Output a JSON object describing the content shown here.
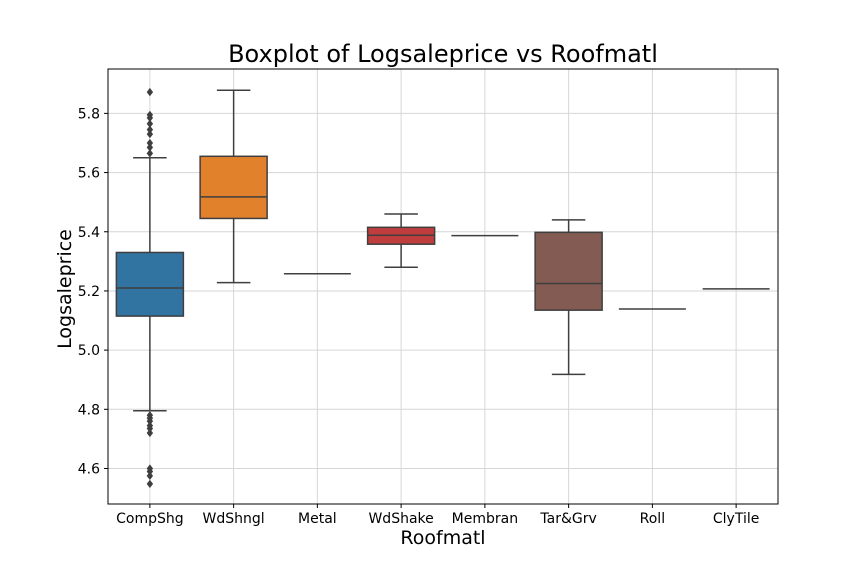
{
  "chart_data": {
    "type": "box",
    "title": "Boxplot of Logsaleprice vs Roofmatl",
    "xlabel": "Roofmatl",
    "ylabel": "Logsaleprice",
    "ylim": [
      4.48,
      5.95
    ],
    "yticks": [
      4.6,
      4.8,
      5.0,
      5.2,
      5.4,
      5.6,
      5.8
    ],
    "grid": true,
    "categories": [
      "CompShg",
      "WdShngl",
      "Metal",
      "WdShake",
      "Membran",
      "Tar&Grv",
      "Roll",
      "ClyTile"
    ],
    "series": [
      {
        "category": "CompShg",
        "color": "#3274a1",
        "min": 4.795,
        "q1": 5.115,
        "median": 5.21,
        "q3": 5.33,
        "max": 5.65,
        "outliers": [
          5.872,
          5.795,
          5.785,
          5.765,
          5.745,
          5.73,
          5.7,
          5.685,
          5.665,
          4.78,
          4.77,
          4.76,
          4.745,
          4.735,
          4.72,
          4.6,
          4.59,
          4.575,
          4.548
        ]
      },
      {
        "category": "WdShngl",
        "color": "#e1812c",
        "min": 5.228,
        "q1": 5.445,
        "median": 5.518,
        "q3": 5.655,
        "max": 5.878,
        "outliers": []
      },
      {
        "category": "Metal",
        "color": "#3a923a",
        "min": 5.258,
        "q1": 5.258,
        "median": 5.258,
        "q3": 5.258,
        "max": 5.258,
        "outliers": []
      },
      {
        "category": "WdShake",
        "color": "#c03d3e",
        "min": 5.28,
        "q1": 5.358,
        "median": 5.388,
        "q3": 5.415,
        "max": 5.46,
        "outliers": []
      },
      {
        "category": "Membran",
        "color": "#9372b2",
        "min": 5.387,
        "q1": 5.387,
        "median": 5.387,
        "q3": 5.387,
        "max": 5.387,
        "outliers": []
      },
      {
        "category": "Tar&Grv",
        "color": "#845b53",
        "min": 4.918,
        "q1": 5.135,
        "median": 5.225,
        "q3": 5.398,
        "max": 5.44,
        "outliers": []
      },
      {
        "category": "Roll",
        "color": "#d684bd",
        "min": 5.139,
        "q1": 5.139,
        "median": 5.139,
        "q3": 5.139,
        "max": 5.139,
        "outliers": []
      },
      {
        "category": "ClyTile",
        "color": "#7f7f7f",
        "min": 5.207,
        "q1": 5.207,
        "median": 5.207,
        "q3": 5.207,
        "max": 5.207,
        "outliers": []
      }
    ]
  }
}
